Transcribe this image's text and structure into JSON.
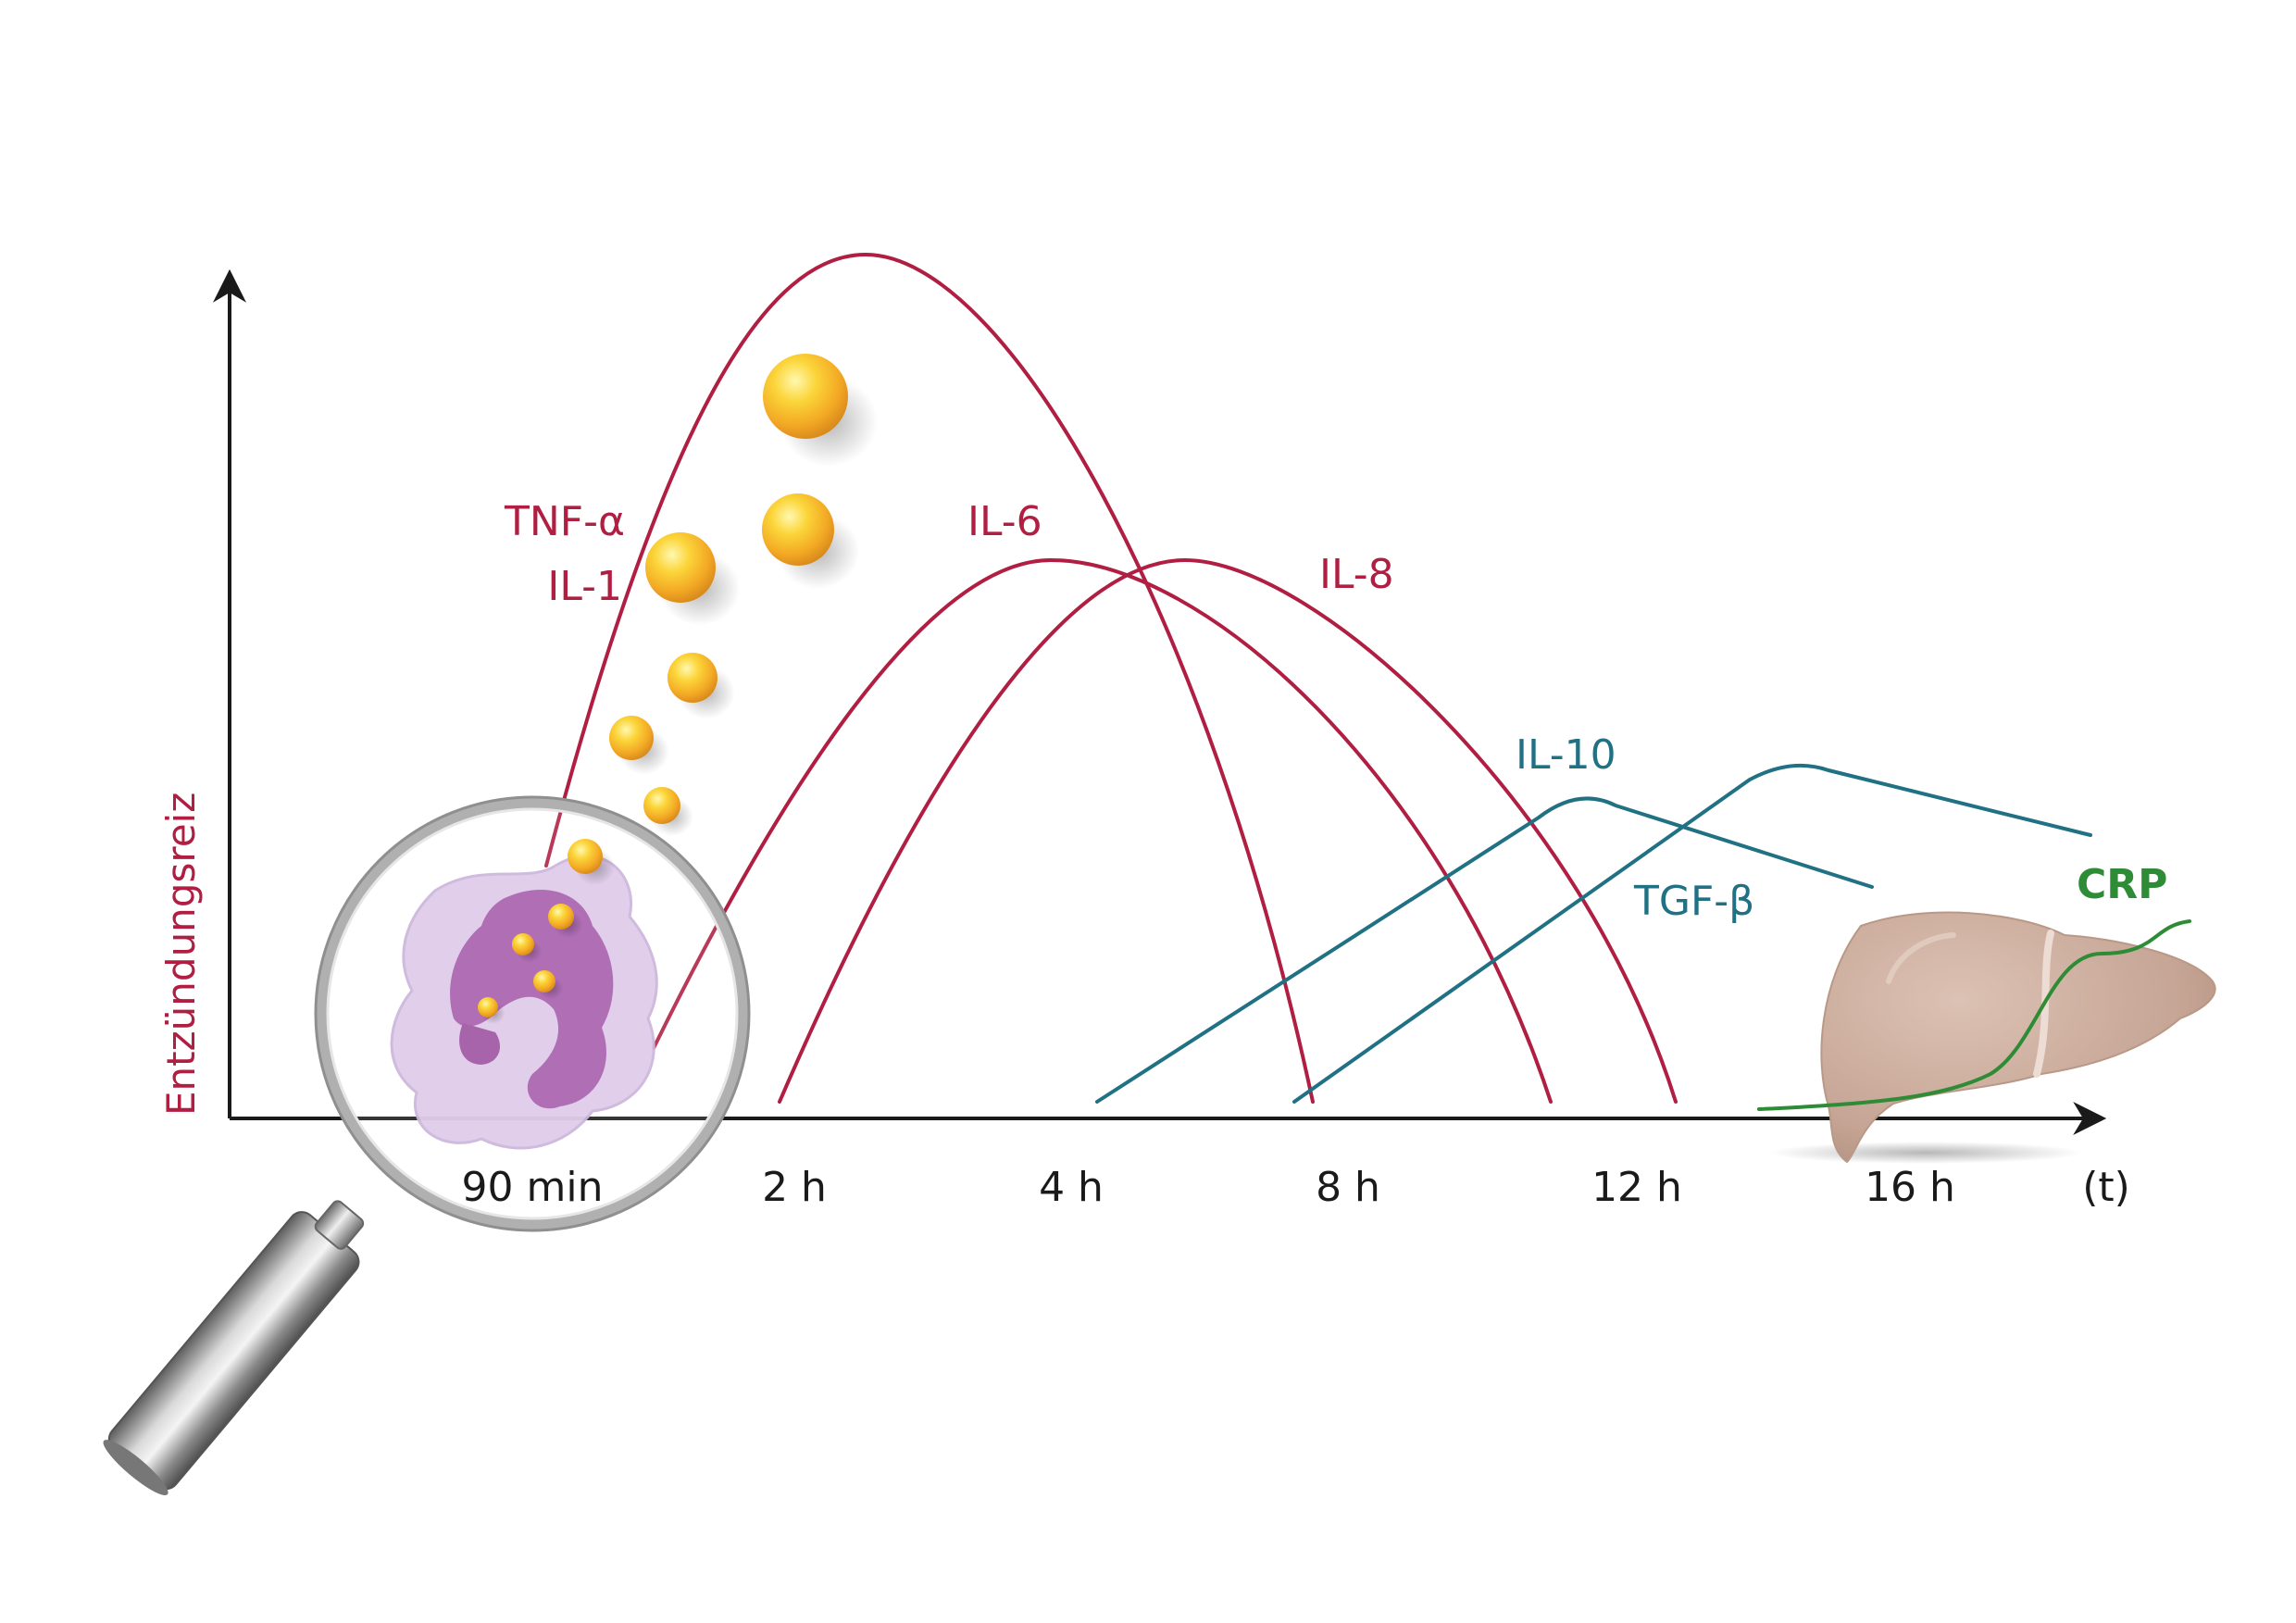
{
  "colors": {
    "proinflammatory": "#b01e42",
    "antiinflammatory": "#1f7183",
    "crp": "#2e8b36",
    "axis": "#1a1a1a",
    "cell_outer": "#d8c3e5",
    "cell_nucleus": "#9a50a5",
    "granule": "#f2b51c",
    "liver": "#c9aa9c",
    "lens_rim": "#a7a7a7",
    "handle": "#808080"
  },
  "axes": {
    "y_label": "Entzündungsreiz",
    "x_unit": "(t)",
    "x_ticks": [
      "90 min",
      "2 h",
      "4 h",
      "8 h",
      "12 h",
      "16 h"
    ]
  },
  "curves": [
    {
      "name": "TNF-α",
      "label_line2": "IL-1",
      "group": "proinflammatory"
    },
    {
      "name": "IL-6",
      "group": "proinflammatory"
    },
    {
      "name": "IL-8",
      "group": "proinflammatory"
    },
    {
      "name": "IL-10",
      "group": "antiinflammatory"
    },
    {
      "name": "TGF-β",
      "group": "antiinflammatory"
    },
    {
      "name": "CRP",
      "group": "crp"
    }
  ],
  "illustrations": {
    "magnifier_icon": "magnifying-glass",
    "cell_icon": "neutrophil-cell",
    "granule_icon": "cytokine-sphere",
    "liver_icon": "liver"
  }
}
